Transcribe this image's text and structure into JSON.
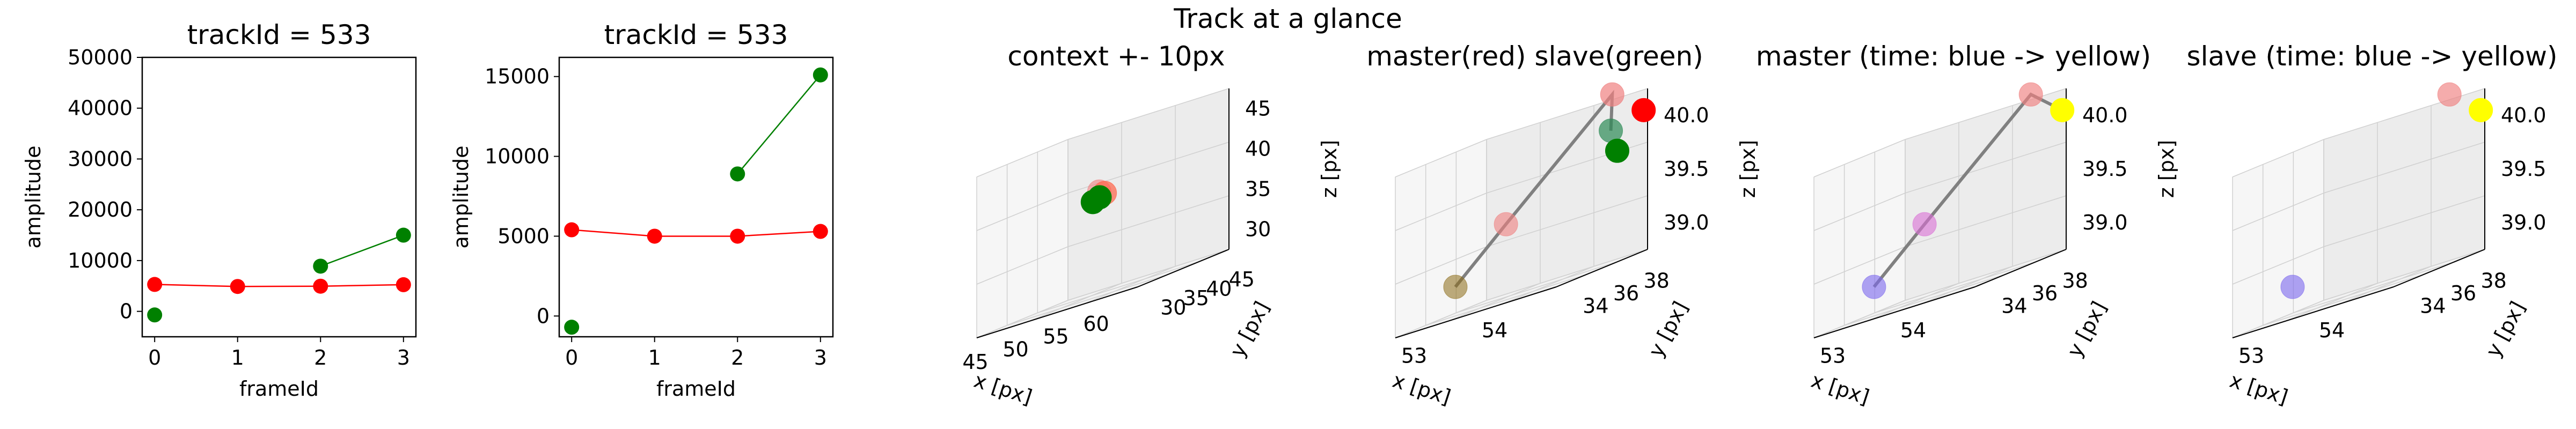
{
  "figure": {
    "suptitle": "Track at a glance"
  },
  "chart_data": [
    {
      "type": "line",
      "title": "trackId = 533",
      "xlabel": "frameId",
      "ylabel": "amplitude",
      "xlim": [
        -0.15,
        3.15
      ],
      "ylim": [
        -5000,
        50000
      ],
      "xticks": [
        "0",
        "1",
        "2",
        "3"
      ],
      "yticks": [
        "0",
        "10000",
        "20000",
        "30000",
        "40000",
        "50000"
      ],
      "grid": false,
      "series": [
        {
          "color": "#ff0000",
          "x": [
            0,
            1,
            2,
            3
          ],
          "y": [
            5300,
            4900,
            4950,
            5250
          ]
        },
        {
          "color": "#008000",
          "x": [
            0
          ],
          "y": [
            -700
          ],
          "line": false
        },
        {
          "color": "#008000",
          "x": [
            2,
            3
          ],
          "y": [
            8900,
            15000
          ]
        }
      ]
    },
    {
      "type": "line",
      "title": "trackId = 533",
      "xlabel": "frameId",
      "ylabel": "amplitude",
      "xlim": [
        -0.15,
        3.15
      ],
      "ylim": [
        -1300,
        16200
      ],
      "xticks": [
        "0",
        "1",
        "2",
        "3"
      ],
      "yticks": [
        "0",
        "5000",
        "10000",
        "15000"
      ],
      "grid": false,
      "series": [
        {
          "color": "#ff0000",
          "x": [
            0,
            1,
            2,
            3
          ],
          "y": [
            5400,
            5000,
            5000,
            5300
          ]
        },
        {
          "color": "#008000",
          "x": [
            0
          ],
          "y": [
            -700
          ],
          "line": false
        },
        {
          "color": "#008000",
          "x": [
            2,
            3
          ],
          "y": [
            8900,
            15100
          ]
        }
      ]
    },
    {
      "type": "scatter3d",
      "title": "context +- 10px",
      "xlabel": "x [px]",
      "ylabel": "y [px]",
      "zlabel": "z [px]",
      "xticks": [
        "45",
        "50",
        "55",
        "60"
      ],
      "yticks": [
        "30",
        "35",
        "40",
        "45"
      ],
      "zticks": [
        "30",
        "35",
        "40",
        "45"
      ],
      "points": [
        {
          "color": "#f08080",
          "alpha": 0.6,
          "x": 53.5,
          "y": 36.5,
          "z": 40.2
        },
        {
          "color": "#ff6347",
          "alpha": 0.7,
          "x": 53.8,
          "y": 37.0,
          "z": 39.8
        },
        {
          "color": "#008000",
          "alpha": 1.0,
          "x": 53.0,
          "y": 36.0,
          "z": 39.2
        },
        {
          "color": "#008000",
          "alpha": 1.0,
          "x": 53.4,
          "y": 36.6,
          "z": 39.5
        }
      ]
    },
    {
      "type": "scatter3d",
      "title": "master(red) slave(green)",
      "xlabel": "x [px]",
      "ylabel": "y [px]",
      "zlabel": "z [px]",
      "xticks": [
        "53",
        "54"
      ],
      "yticks": [
        "34",
        "36",
        "38"
      ],
      "zticks": [
        "39.0",
        "39.5",
        "40.0"
      ],
      "points": [
        {
          "color": "#8b6914",
          "alpha": 0.55,
          "x": 53.0,
          "y": 35.0,
          "z": 39.1
        },
        {
          "color": "#f08080",
          "alpha": 0.6,
          "x": 53.5,
          "y": 35.5,
          "z": 39.45
        },
        {
          "color": "#f08080",
          "alpha": 0.7,
          "x": 54.0,
          "y": 37.8,
          "z": 40.2
        },
        {
          "color": "#2e8b57",
          "alpha": 0.7,
          "x": 54.2,
          "y": 37.3,
          "z": 39.9
        },
        {
          "color": "#ff0000",
          "alpha": 1.0,
          "x": 54.8,
          "y": 37.0,
          "z": 39.95
        },
        {
          "color": "#008000",
          "alpha": 1.0,
          "x": 54.6,
          "y": 36.6,
          "z": 39.7
        }
      ],
      "path": [
        0,
        1,
        2,
        3
      ]
    },
    {
      "type": "scatter3d",
      "title": "master (time: blue -> yellow)",
      "xlabel": "x [px]",
      "ylabel": "y [px]",
      "zlabel": "z [px]",
      "xticks": [
        "53",
        "54"
      ],
      "yticks": [
        "34",
        "36",
        "38"
      ],
      "zticks": [
        "39.0",
        "39.5",
        "40.0"
      ],
      "points": [
        {
          "color": "#7b68ee",
          "alpha": 0.6,
          "x": 53.0,
          "y": 35.0,
          "z": 39.1
        },
        {
          "color": "#da70d6",
          "alpha": 0.6,
          "x": 53.5,
          "y": 35.5,
          "z": 39.45
        },
        {
          "color": "#f08080",
          "alpha": 0.65,
          "x": 54.0,
          "y": 37.8,
          "z": 40.2
        },
        {
          "color": "#ffff00",
          "alpha": 1.0,
          "x": 54.8,
          "y": 37.0,
          "z": 39.95
        }
      ],
      "path": [
        0,
        1,
        2,
        3
      ]
    },
    {
      "type": "scatter3d",
      "title": "slave (time: blue -> yellow)",
      "xlabel": "x [px]",
      "ylabel": "y [px]",
      "zlabel": "z [px]",
      "xticks": [
        "53",
        "54"
      ],
      "yticks": [
        "34",
        "36",
        "38"
      ],
      "zticks": [
        "39.0",
        "39.5",
        "40.0"
      ],
      "points": [
        {
          "color": "#7b68ee",
          "alpha": 0.6,
          "x": 53.0,
          "y": 35.0,
          "z": 39.1
        },
        {
          "color": "#f08080",
          "alpha": 0.65,
          "x": 54.0,
          "y": 37.8,
          "z": 40.2
        },
        {
          "color": "#ffff00",
          "alpha": 1.0,
          "x": 54.8,
          "y": 37.0,
          "z": 39.95
        }
      ]
    }
  ]
}
